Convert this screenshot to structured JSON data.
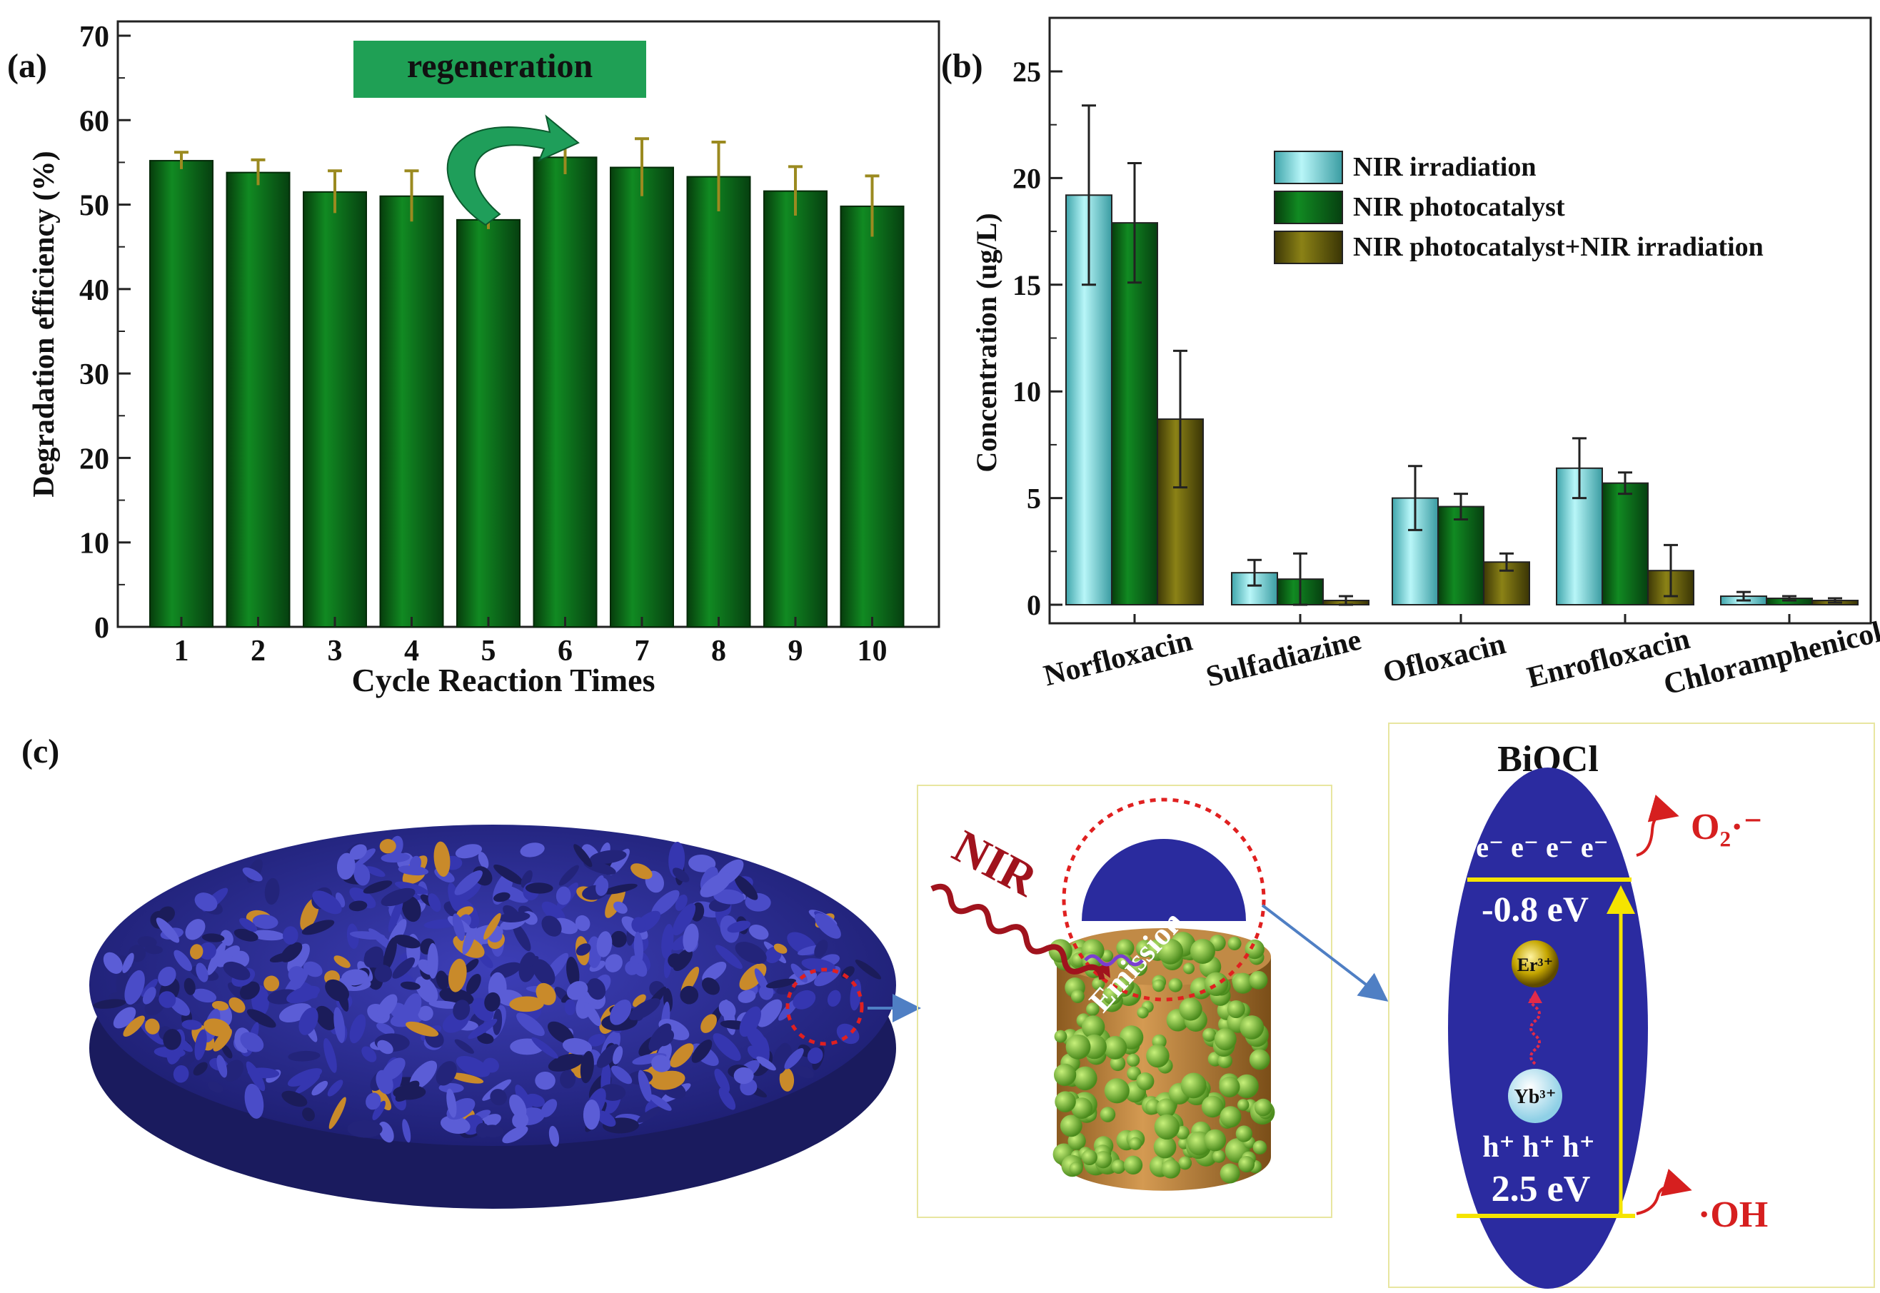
{
  "panel_labels": {
    "a": "(a)",
    "b": "(b)",
    "c": "(c)"
  },
  "colors": {
    "green_bar": "#0d6b1a",
    "err_gold": "#9b8a20",
    "cyan": "#7fe0e4",
    "olive": "#6b6410",
    "blue": "#2e2f9e",
    "yellow": "#f5e400",
    "red": "#d61f1f",
    "banner": "#1fa055"
  },
  "chart_data": [
    {
      "type": "bar",
      "title": "",
      "xlabel": "Cycle Reaction Times",
      "ylabel": "Degradation efficiency (%)",
      "ylim": [
        0,
        70
      ],
      "yticks": [
        "0",
        "10",
        "20",
        "30",
        "40",
        "50",
        "60",
        "70"
      ],
      "categories": [
        "1",
        "2",
        "3",
        "4",
        "5",
        "6",
        "7",
        "8",
        "9",
        "10"
      ],
      "values": [
        55.2,
        53.8,
        51.5,
        51.0,
        48.2,
        55.6,
        54.4,
        53.3,
        51.6,
        49.8
      ],
      "errors": [
        1.0,
        1.5,
        2.5,
        3.0,
        1.1,
        2.0,
        3.4,
        4.1,
        2.9,
        3.6
      ],
      "annotation": "regeneration"
    },
    {
      "type": "bar",
      "title": "",
      "xlabel": "",
      "ylabel": "Concentration (ug/L)",
      "ylim": [
        0,
        25
      ],
      "yticks": [
        "0",
        "5",
        "10",
        "15",
        "20",
        "25"
      ],
      "categories": [
        "Norfloxacin",
        "Sulfadiazine",
        "Ofloxacin",
        "Enrofloxacin",
        "Chloramphenicol"
      ],
      "series": [
        {
          "name": "NIR irradiation",
          "values": [
            19.2,
            1.5,
            5.0,
            6.4,
            0.4
          ],
          "errors": [
            4.2,
            0.6,
            1.5,
            1.4,
            0.2
          ]
        },
        {
          "name": "NIR photocatalyst",
          "values": [
            17.9,
            1.2,
            4.6,
            5.7,
            0.3
          ],
          "errors": [
            2.8,
            1.2,
            0.6,
            0.5,
            0.1
          ]
        },
        {
          "name": "NIR photocatalyst+NIR irradiation",
          "values": [
            8.7,
            0.2,
            2.0,
            1.6,
            0.2
          ],
          "errors": [
            3.2,
            0.2,
            0.4,
            1.2,
            0.1
          ]
        }
      ],
      "legend_position": "top-right"
    }
  ],
  "schematic": {
    "nir_label": "NIR",
    "emission_label": "Emission",
    "material": "BiOCl",
    "electrons": "e⁻ e⁻ e⁻ e⁻",
    "cb_energy": "-0.8 eV",
    "er_ion": "Er³⁺",
    "yb_ion": "Yb³⁺",
    "holes": "h⁺ h⁺ h⁺",
    "vb_energy": "2.5 eV",
    "superoxide": "O₂·⁻",
    "hydroxyl": "·OH"
  }
}
